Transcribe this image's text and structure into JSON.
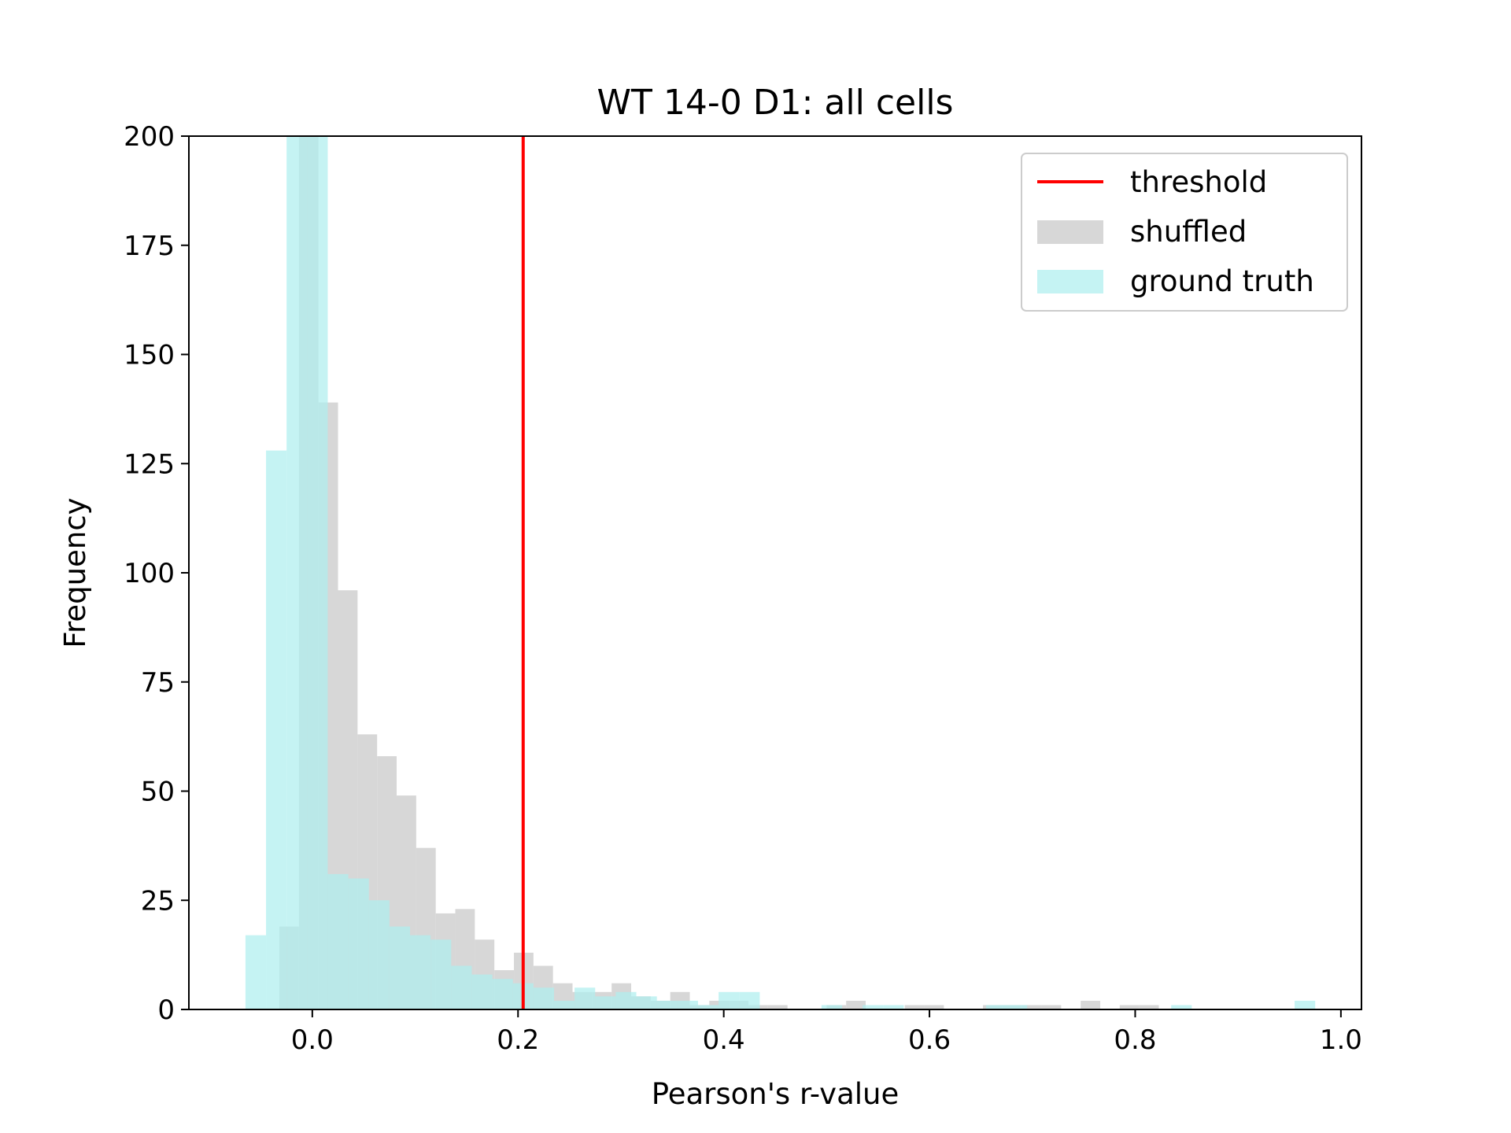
{
  "chart_data": {
    "type": "histogram",
    "title": "WT 14-0 D1: all cells",
    "xlabel": "Pearson's r-value",
    "ylabel": "Frequency",
    "xlim": [
      -0.12,
      1.02
    ],
    "ylim": [
      0,
      200
    ],
    "xticks": [
      0.0,
      0.2,
      0.4,
      0.6,
      0.8,
      1.0
    ],
    "xtick_labels": [
      "0.0",
      "0.2",
      "0.4",
      "0.6",
      "0.8",
      "1.0"
    ],
    "yticks": [
      0,
      25,
      50,
      75,
      100,
      125,
      150,
      175,
      200
    ],
    "ytick_labels": [
      "0",
      "25",
      "50",
      "75",
      "100",
      "125",
      "150",
      "175",
      "200"
    ],
    "grid": false,
    "legend_position": "top-right",
    "colors": {
      "threshold": "#ff0000",
      "shuffled": "#d3d3d3",
      "ground_truth": "#afeeee",
      "overlap": "#a9dcd7"
    },
    "threshold": {
      "name": "threshold",
      "x": 0.205
    },
    "series": [
      {
        "name": "shuffled",
        "bins": [
          [
            -0.032,
            -0.013,
            19
          ],
          [
            -0.013,
            0.006,
            218
          ],
          [
            0.006,
            0.025,
            139
          ],
          [
            0.025,
            0.044,
            96
          ],
          [
            0.044,
            0.063,
            63
          ],
          [
            0.063,
            0.082,
            58
          ],
          [
            0.082,
            0.101,
            49
          ],
          [
            0.101,
            0.12,
            37
          ],
          [
            0.12,
            0.139,
            22
          ],
          [
            0.139,
            0.158,
            23
          ],
          [
            0.158,
            0.177,
            16
          ],
          [
            0.177,
            0.196,
            9
          ],
          [
            0.196,
            0.215,
            13
          ],
          [
            0.215,
            0.234,
            10
          ],
          [
            0.234,
            0.253,
            6
          ],
          [
            0.253,
            0.272,
            4
          ],
          [
            0.272,
            0.291,
            4
          ],
          [
            0.291,
            0.31,
            6
          ],
          [
            0.31,
            0.329,
            3
          ],
          [
            0.329,
            0.348,
            2
          ],
          [
            0.348,
            0.367,
            4
          ],
          [
            0.367,
            0.386,
            1
          ],
          [
            0.386,
            0.405,
            2
          ],
          [
            0.405,
            0.424,
            2
          ],
          [
            0.424,
            0.443,
            1
          ],
          [
            0.443,
            0.462,
            1
          ],
          [
            0.5,
            0.519,
            1
          ],
          [
            0.519,
            0.538,
            2
          ],
          [
            0.576,
            0.595,
            1
          ],
          [
            0.595,
            0.614,
            1
          ],
          [
            0.652,
            0.671,
            1
          ],
          [
            0.671,
            0.69,
            1
          ],
          [
            0.69,
            0.709,
            1
          ],
          [
            0.709,
            0.728,
            1
          ],
          [
            0.747,
            0.766,
            2
          ],
          [
            0.785,
            0.804,
            1
          ],
          [
            0.804,
            0.823,
            1
          ]
        ]
      },
      {
        "name": "ground truth",
        "bins": [
          [
            -0.065,
            -0.045,
            17
          ],
          [
            -0.045,
            -0.025,
            128
          ],
          [
            -0.025,
            -0.005,
            316
          ],
          [
            -0.005,
            0.015,
            272
          ],
          [
            0.015,
            0.035,
            31
          ],
          [
            0.035,
            0.055,
            30
          ],
          [
            0.055,
            0.075,
            25
          ],
          [
            0.075,
            0.095,
            19
          ],
          [
            0.095,
            0.115,
            17
          ],
          [
            0.115,
            0.135,
            16
          ],
          [
            0.135,
            0.155,
            10
          ],
          [
            0.155,
            0.175,
            8
          ],
          [
            0.175,
            0.195,
            7
          ],
          [
            0.195,
            0.215,
            6
          ],
          [
            0.215,
            0.235,
            5
          ],
          [
            0.235,
            0.255,
            2
          ],
          [
            0.255,
            0.275,
            5
          ],
          [
            0.275,
            0.295,
            3
          ],
          [
            0.295,
            0.315,
            4
          ],
          [
            0.315,
            0.335,
            3
          ],
          [
            0.335,
            0.355,
            2
          ],
          [
            0.355,
            0.375,
            2
          ],
          [
            0.375,
            0.395,
            1
          ],
          [
            0.395,
            0.415,
            4
          ],
          [
            0.415,
            0.435,
            4
          ],
          [
            0.495,
            0.515,
            1
          ],
          [
            0.535,
            0.555,
            1
          ],
          [
            0.555,
            0.575,
            1
          ],
          [
            0.655,
            0.675,
            1
          ],
          [
            0.675,
            0.695,
            1
          ],
          [
            0.835,
            0.855,
            1
          ],
          [
            0.955,
            0.975,
            2
          ]
        ]
      }
    ]
  }
}
